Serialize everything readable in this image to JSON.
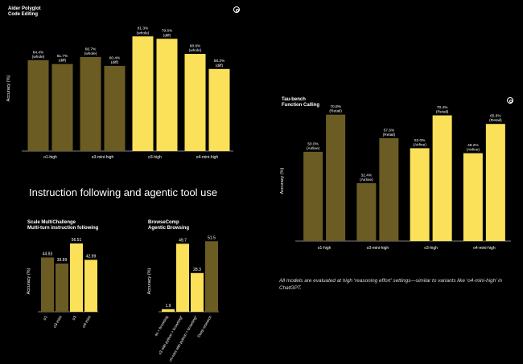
{
  "colors": {
    "dark_bar": "#6b5c23",
    "bright_bar": "#fbe05a",
    "bg": "#000000",
    "axis": "#ffffff"
  },
  "logo_icon": "openai-logo-icon",
  "heading": "Instruction following and agentic tool use",
  "footnote": "All models are evaluated at high ‘reasoning effort’ settings—similar to variants like ‘o4-mini-high’ in ChatGPT.",
  "chart_data": [
    {
      "id": "aider",
      "type": "bar",
      "title": "Aider Polyglot",
      "subtitle": "Code Editing",
      "ylabel": "Accuracy (%)",
      "ylim": [
        0,
        100
      ],
      "categories": [
        "o1-high",
        "o3-mini-high",
        "o3-high",
        "o4-mini-high"
      ],
      "series": [
        {
          "name": "whole",
          "values": [
            64.4,
            66.7,
            81.3,
            68.9
          ],
          "labels": [
            "64.4%\n(whole)",
            "66.7%\n(whole)",
            "81.3%\n(whole)",
            "68.9%\n(whole)"
          ]
        },
        {
          "name": "diff",
          "values": [
            61.7,
            60.4,
            79.6,
            58.2
          ],
          "labels": [
            "61.7%\n(diff)",
            "60.4%\n(diff)",
            "79.6%\n(diff)",
            "58.2%\n(diff)"
          ]
        }
      ],
      "highlight": [
        false,
        false,
        true,
        true
      ]
    },
    {
      "id": "tau",
      "type": "bar",
      "title": "Tau-bench",
      "subtitle": "Function Calling",
      "ylabel": "Accuracy (%)",
      "ylim": [
        0,
        80
      ],
      "categories": [
        "o1-high",
        "o3-mini-high",
        "o3-high",
        "o4-mini-high"
      ],
      "series": [
        {
          "name": "Airline",
          "values": [
            50.0,
            32.4,
            52.0,
            49.2
          ],
          "labels": [
            "50.0%\n(Airline)",
            "32.4%\n(Airline)",
            "52.0%\n(Airline)",
            "49.2%\n(Airline)"
          ]
        },
        {
          "name": "Retail",
          "values": [
            70.8,
            57.6,
            70.4,
            65.6
          ],
          "labels": [
            "70.8%\n(Retail)",
            "57.6%\n(Retail)",
            "70.4%\n(Retail)",
            "65.6%\n(Retail)"
          ]
        }
      ],
      "highlight": [
        false,
        false,
        true,
        true
      ]
    },
    {
      "id": "multi",
      "type": "bar",
      "title": "Scale MultiChallenge",
      "subtitle": "Multi-turn instruction following",
      "ylabel": "Accuracy (%)",
      "ylim": [
        0,
        65
      ],
      "categories": [
        "o1",
        "o3-mini",
        "o3",
        "o4-mini"
      ],
      "series": [
        {
          "name": "",
          "values": [
            44.93,
            39.89,
            56.51,
            42.99
          ],
          "labels": [
            "44.93",
            "39.89",
            "56.51",
            "42.99"
          ]
        }
      ],
      "highlight": [
        false,
        false,
        true,
        true
      ]
    },
    {
      "id": "browse",
      "type": "bar",
      "title": "BrowseComp",
      "subtitle": "Agentic Browsing",
      "ylabel": "Accuracy (%)",
      "ylim": [
        0,
        60
      ],
      "categories": [
        "4o + browsing",
        "o3 with python + browsing*",
        "o4-mini with python + browsing*",
        "Deep research"
      ],
      "series": [
        {
          "name": "",
          "values": [
            1.9,
            49.7,
            28.3,
            51.5
          ],
          "labels": [
            "1.9",
            "49.7",
            "28.3",
            "51.5"
          ]
        }
      ],
      "highlight": [
        true,
        true,
        true,
        false
      ]
    }
  ]
}
